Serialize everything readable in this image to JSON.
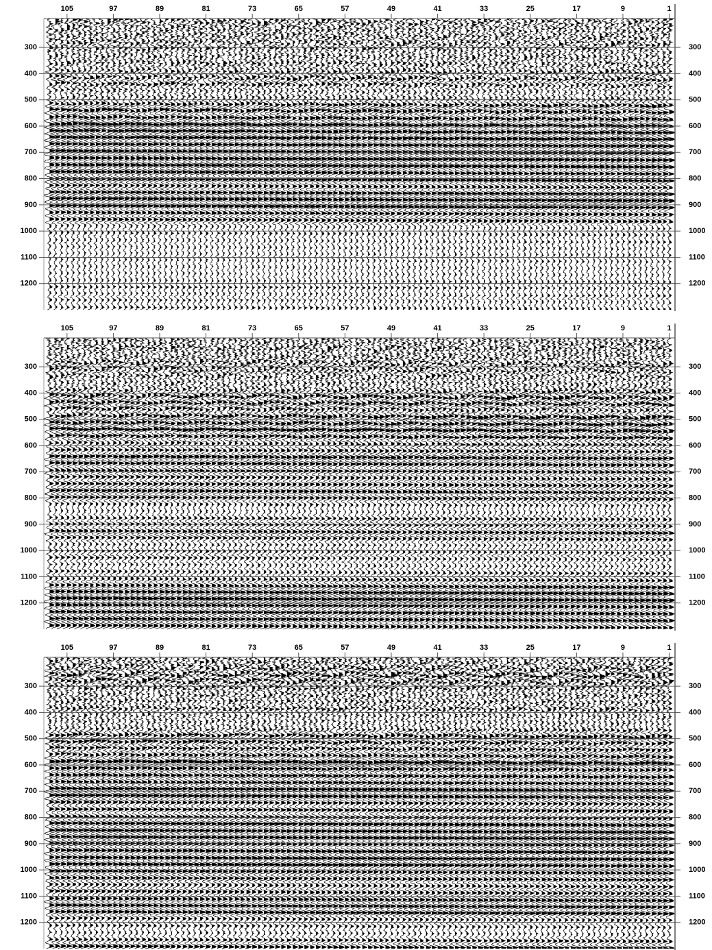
{
  "chart_data": [
    {
      "type": "wiggle",
      "xlim": [
        109,
        0
      ],
      "ylim": [
        190,
        1300
      ],
      "xticks": [
        105,
        97,
        89,
        81,
        73,
        65,
        57,
        49,
        41,
        33,
        25,
        17,
        9,
        1
      ],
      "yticks": [
        300,
        400,
        500,
        600,
        700,
        800,
        900,
        1000,
        1100,
        1200
      ]
    },
    {
      "type": "wiggle",
      "xlim": [
        109,
        0
      ],
      "ylim": [
        190,
        1300
      ],
      "xticks": [
        105,
        97,
        89,
        81,
        73,
        65,
        57,
        49,
        41,
        33,
        25,
        17,
        9,
        1
      ],
      "yticks": [
        300,
        400,
        500,
        600,
        700,
        800,
        900,
        1000,
        1100,
        1200
      ]
    },
    {
      "type": "wiggle",
      "xlim": [
        109,
        0
      ],
      "ylim": [
        190,
        1300
      ],
      "xticks": [
        105,
        97,
        89,
        81,
        73,
        65,
        57,
        49,
        41,
        33,
        25,
        17,
        9,
        1
      ],
      "yticks": [
        300,
        400,
        500,
        600,
        700,
        800,
        900,
        1000,
        1100,
        1200
      ]
    }
  ]
}
